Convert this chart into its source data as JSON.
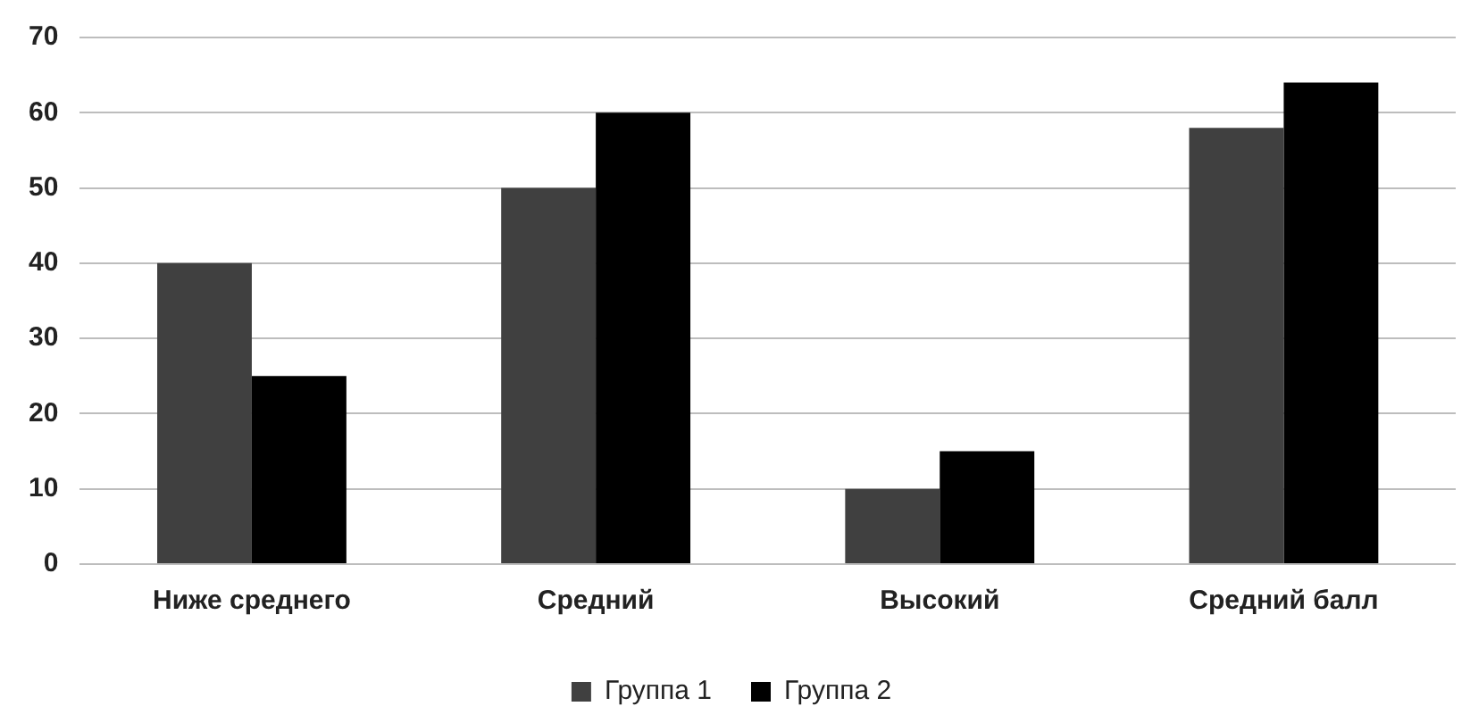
{
  "chart_data": {
    "type": "bar",
    "categories": [
      "Ниже среднего",
      "Средний",
      "Высокий",
      "Средний балл"
    ],
    "series": [
      {
        "name": "Группа 1",
        "color": "#404040",
        "values": [
          40,
          50,
          10,
          58
        ]
      },
      {
        "name": "Группа 2",
        "color": "#000000",
        "values": [
          25,
          60,
          15,
          64
        ]
      }
    ],
    "ylim": [
      0,
      70
    ],
    "yticks": [
      0,
      10,
      20,
      30,
      40,
      50,
      60,
      70
    ],
    "grid": "y",
    "legend": "bottom"
  }
}
